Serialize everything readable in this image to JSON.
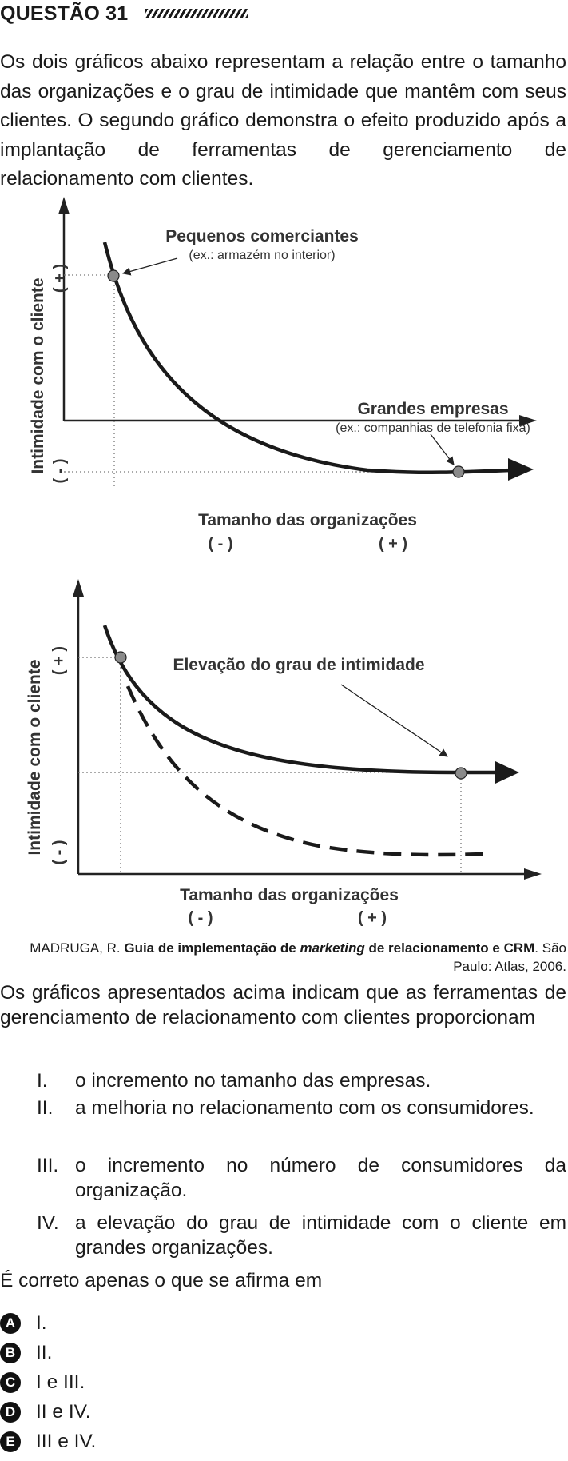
{
  "question": {
    "title": "QUESTÃO 31",
    "intro": "Os dois gráficos abaixo representam a relação entre o tamanho das organizações e o grau de intimidade que mantêm com seus clientes. O segundo gráfico demonstra o efeito produzido após a implantação de ferramentas de gerenciamento de relacionamento com clientes.",
    "citation": {
      "author": "MADRUGA, R.",
      "title_part1": "Guia de implementação de",
      "title_italic": "marketing",
      "title_part2": "de relacionamento e CRM",
      "rest": ". São Paulo: Atlas, 2006."
    },
    "prompt": "Os gráficos apresentados acima indicam que as ferramentas de gerenciamento de relacionamento com clientes proporcionam",
    "items": [
      {
        "num": "I.",
        "text": "o incremento no tamanho das empresas."
      },
      {
        "num": "II.",
        "text": "a melhoria no relacionamento com os consumidores."
      },
      {
        "num": "III.",
        "text": "o incremento no número de consumidores da organização."
      },
      {
        "num": "IV.",
        "text": "a elevação do grau de intimidade com o cliente em grandes organizações."
      }
    ],
    "ask": "É correto apenas o que se afirma em",
    "options": [
      {
        "letter": "A",
        "text": "I."
      },
      {
        "letter": "B",
        "text": "II."
      },
      {
        "letter": "C",
        "text": "I e III."
      },
      {
        "letter": "D",
        "text": "II e IV."
      },
      {
        "letter": "E",
        "text": "III e IV."
      }
    ]
  },
  "figures": {
    "chart1": {
      "ylabel": "Intimidade com o cliente",
      "y_plus": "( + )",
      "y_minus": "( - )",
      "xlabel": "Tamanho das organizações",
      "x_minus": "( - )",
      "x_plus": "( + )",
      "annot1_title": "Pequenos comerciantes",
      "annot1_sub": "(ex.: armazém no interior)",
      "annot2_title": "Grandes empresas",
      "annot2_sub": "(ex.: companhias de telefonia fixa)"
    },
    "chart2": {
      "ylabel": "Intimidade com o cliente",
      "y_plus": "( + )",
      "y_minus": "( - )",
      "xlabel": "Tamanho das organizações",
      "x_minus": "( - )",
      "x_plus": "( + )",
      "annot_title": "Elevação do grau de intimidade"
    }
  }
}
